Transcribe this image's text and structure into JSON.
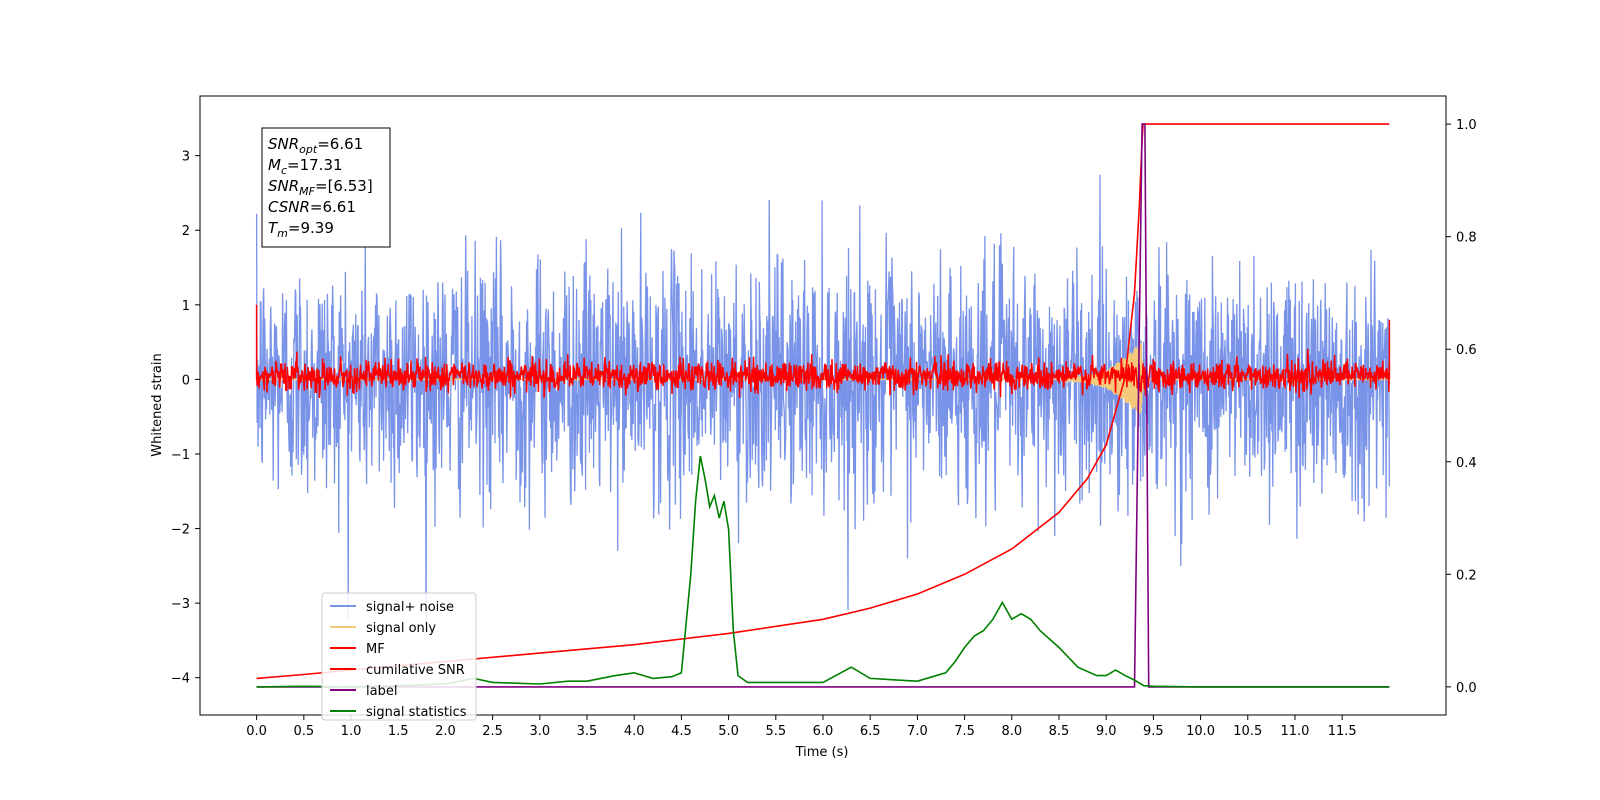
{
  "chart_data": {
    "type": "line",
    "xlabel": "Time (s)",
    "ylabel": "Whitened strain",
    "xlim": [
      -0.6,
      12.6
    ],
    "ylim": [
      -4.5,
      3.8
    ],
    "y2lim": [
      -0.05,
      1.05
    ],
    "x_ticks": [
      "0.0",
      "0.5",
      "1.0",
      "1.5",
      "2.0",
      "2.5",
      "3.0",
      "3.5",
      "4.0",
      "4.5",
      "5.0",
      "5.5",
      "6.0",
      "6.5",
      "7.0",
      "7.5",
      "8.0",
      "8.5",
      "9.0",
      "9.5",
      "10.0",
      "10.5",
      "11.0",
      "11.5"
    ],
    "y_ticks": [
      "3",
      "2",
      "1",
      "0",
      "−1",
      "−2",
      "−3",
      "−4"
    ],
    "y2_ticks": [
      "0.0",
      "0.2",
      "0.4",
      "0.6",
      "0.8",
      "1.0"
    ],
    "grid": false,
    "legend_placement": "lower-left",
    "annotation": {
      "lines": [
        {
          "sym": "SNR",
          "sub": "opt",
          "value": "=6.61"
        },
        {
          "sym": "M",
          "sub": "c",
          "value": "=17.31"
        },
        {
          "sym": "SNR",
          "sub": "MF",
          "value": "=[6.53]"
        },
        {
          "sym": "CSNR",
          "sub": "",
          "value": "=6.61"
        },
        {
          "sym": "T",
          "sub": "m",
          "value": "=9.39"
        }
      ]
    },
    "series": [
      {
        "name": "signal+ noise",
        "axis": "left",
        "color": "#7893e8",
        "x_range": [
          0.0,
          12.0
        ],
        "envelope": {
          "mean": 0.0,
          "typical_lower": -1.5,
          "typical_upper": 1.5,
          "min": -4.15,
          "max": 3.45
        }
      },
      {
        "name": "signal only",
        "axis": "left",
        "color": "#f5c97a",
        "x": [
          0.0,
          8.5,
          8.8,
          9.0,
          9.2,
          9.3,
          9.37,
          9.39,
          9.45,
          12.0
        ],
        "amplitude": [
          0.0,
          0.0,
          0.05,
          0.12,
          0.3,
          0.42,
          0.5,
          0.1,
          0.0,
          0.0
        ]
      },
      {
        "name": "MF",
        "axis": "left",
        "color": "#ff0000",
        "x_range": [
          0.0,
          12.0
        ],
        "envelope": {
          "mean": 0.05,
          "typical_lower": -0.15,
          "typical_upper": 0.25,
          "min": -0.25,
          "max": 1.0
        }
      },
      {
        "name": "cumilative SNR",
        "axis": "right",
        "color": "#ff0000",
        "x": [
          0.0,
          0.5,
          1.0,
          2.0,
          3.0,
          4.0,
          5.0,
          6.0,
          6.5,
          7.0,
          7.5,
          8.0,
          8.5,
          8.8,
          9.0,
          9.2,
          9.3,
          9.35,
          9.38,
          9.39,
          12.0
        ],
        "y": [
          0.015,
          0.022,
          0.03,
          0.045,
          0.06,
          0.075,
          0.095,
          0.12,
          0.14,
          0.165,
          0.2,
          0.245,
          0.31,
          0.37,
          0.43,
          0.55,
          0.7,
          0.85,
          0.97,
          1.0,
          1.0
        ]
      },
      {
        "name": "label",
        "axis": "right",
        "color": "#800080",
        "x": [
          0.0,
          9.3,
          9.38,
          9.39,
          9.41,
          9.45,
          12.0
        ],
        "y": [
          0.0,
          0.0,
          1.0,
          1.0,
          1.0,
          0.0,
          0.0
        ]
      },
      {
        "name": "signal statistics",
        "axis": "right",
        "color": "#008000",
        "x": [
          0.0,
          0.5,
          1.0,
          1.5,
          2.0,
          2.3,
          2.5,
          3.0,
          3.3,
          3.5,
          3.8,
          4.0,
          4.2,
          4.4,
          4.5,
          4.6,
          4.65,
          4.7,
          4.75,
          4.8,
          4.85,
          4.9,
          4.95,
          5.0,
          5.05,
          5.1,
          5.2,
          5.5,
          6.0,
          6.3,
          6.5,
          7.0,
          7.3,
          7.4,
          7.5,
          7.6,
          7.7,
          7.8,
          7.9,
          8.0,
          8.1,
          8.2,
          8.3,
          8.5,
          8.7,
          8.9,
          9.0,
          9.1,
          9.2,
          9.3,
          9.4,
          9.5,
          10.0,
          12.0
        ],
        "y": [
          0.0,
          0.001,
          0.0,
          0.002,
          0.005,
          0.015,
          0.008,
          0.005,
          0.01,
          0.01,
          0.02,
          0.025,
          0.015,
          0.018,
          0.025,
          0.2,
          0.33,
          0.41,
          0.37,
          0.32,
          0.34,
          0.3,
          0.33,
          0.28,
          0.1,
          0.02,
          0.008,
          0.008,
          0.008,
          0.035,
          0.015,
          0.01,
          0.025,
          0.045,
          0.07,
          0.09,
          0.1,
          0.12,
          0.15,
          0.12,
          0.13,
          0.12,
          0.1,
          0.07,
          0.035,
          0.02,
          0.02,
          0.03,
          0.02,
          0.012,
          0.002,
          0.001,
          0.0,
          0.0
        ]
      }
    ]
  }
}
